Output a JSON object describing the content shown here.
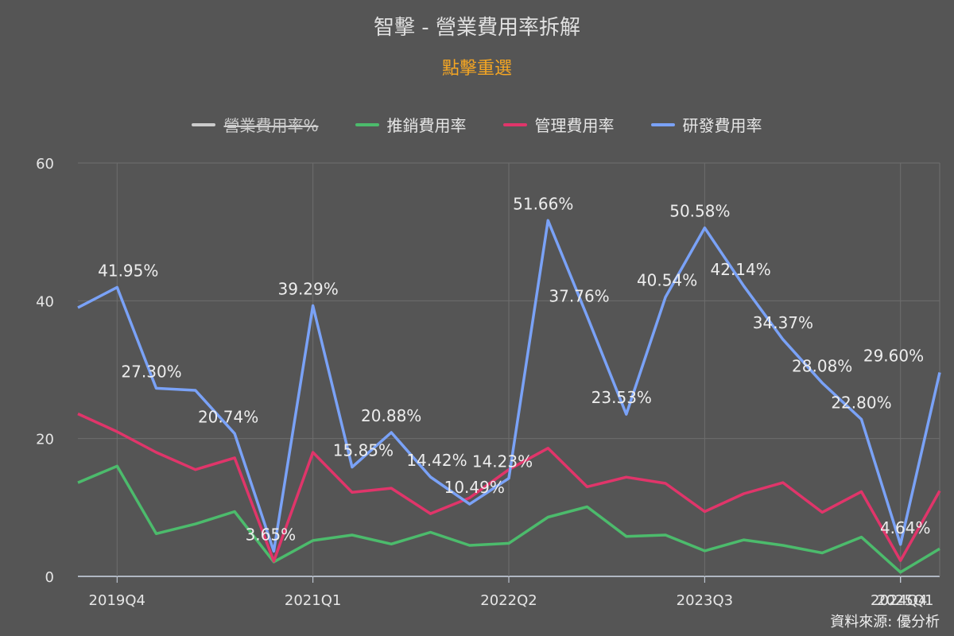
{
  "title": "智擊 - 營業費用率拆解",
  "subtitle": "點擊重選",
  "source": "資料來源: 優分析",
  "legend": [
    {
      "name": "營業費用率%",
      "color": "#cccccc",
      "hidden": true
    },
    {
      "name": "推銷費用率",
      "color": "#4cbb6c",
      "hidden": false
    },
    {
      "name": "管理費用率",
      "color": "#e0356a",
      "hidden": false
    },
    {
      "name": "研發費用率",
      "color": "#7aa2f7",
      "hidden": false
    }
  ],
  "chart_data": {
    "type": "line",
    "x_tick_labels": [
      "2019Q4",
      "2021Q1",
      "2022Q2",
      "2023Q3",
      "2024Q4",
      "2025Q1"
    ],
    "y_ticks": [
      0,
      20,
      40,
      60
    ],
    "ylim": [
      0,
      60
    ],
    "grid": true,
    "series": [
      {
        "name": "推銷費用率",
        "color": "#4cbb6c",
        "values": [
          13.6,
          16.0,
          6.2,
          7.6,
          9.4,
          2.1,
          5.2,
          6.0,
          4.7,
          6.4,
          4.5,
          4.8,
          8.6,
          10.1,
          5.8,
          6.0,
          3.7,
          5.3,
          4.5,
          3.4,
          5.7,
          0.6,
          4.0
        ]
      },
      {
        "name": "管理費用率",
        "color": "#e0356a",
        "values": [
          23.6,
          21.0,
          18.0,
          15.5,
          17.2,
          2.2,
          18.0,
          12.2,
          12.8,
          9.1,
          11.4,
          15.5,
          18.6,
          13.0,
          14.4,
          13.5,
          9.4,
          12.0,
          13.6,
          9.3,
          12.3,
          2.3,
          12.4
        ]
      },
      {
        "name": "研發費用率",
        "color": "#7aa2f7",
        "values": [
          39.0,
          41.95,
          27.3,
          27.0,
          20.74,
          3.65,
          39.29,
          15.85,
          20.88,
          14.42,
          10.49,
          14.23,
          51.66,
          37.76,
          23.53,
          40.54,
          50.58,
          42.14,
          34.37,
          28.08,
          22.8,
          4.64,
          29.6
        ]
      }
    ],
    "data_labels": [
      {
        "index": 1,
        "text": "41.95%"
      },
      {
        "index": 2,
        "text": "27.30%"
      },
      {
        "index": 4,
        "text": "20.74%"
      },
      {
        "index": 5,
        "text": "3.65%"
      },
      {
        "index": 6,
        "text": "39.29%"
      },
      {
        "index": 7,
        "text": "15.85%"
      },
      {
        "index": 8,
        "text": "20.88%"
      },
      {
        "index": 9,
        "text": "14.42%"
      },
      {
        "index": 10,
        "text": "10.49%"
      },
      {
        "index": 11,
        "text": "14.23%"
      },
      {
        "index": 12,
        "text": "51.66%"
      },
      {
        "index": 13,
        "text": "37.76%"
      },
      {
        "index": 14,
        "text": "23.53%"
      },
      {
        "index": 15,
        "text": "40.54%"
      },
      {
        "index": 16,
        "text": "50.58%"
      },
      {
        "index": 17,
        "text": "42.14%"
      },
      {
        "index": 18,
        "text": "34.37%"
      },
      {
        "index": 19,
        "text": "28.08%"
      },
      {
        "index": 20,
        "text": "22.80%"
      },
      {
        "index": 21,
        "text": "4.64%"
      },
      {
        "index": 22,
        "text": "29.60%"
      }
    ]
  }
}
